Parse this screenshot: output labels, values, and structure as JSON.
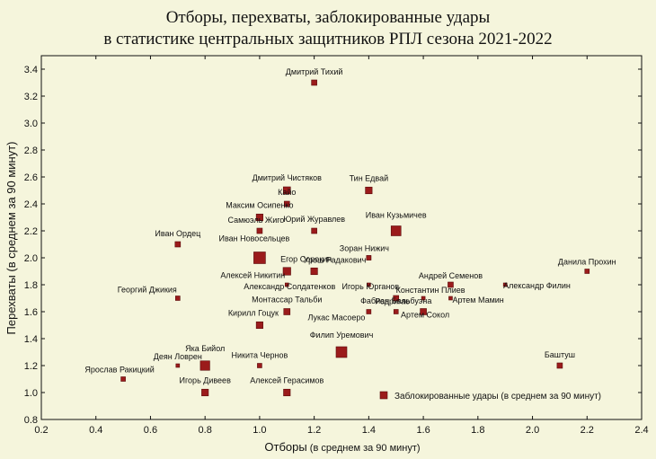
{
  "chart_data": {
    "type": "scatter",
    "title": [
      "Отборы, перехваты, заблокированные удары",
      "в статистике центральных защитников РПЛ сезона 2021-2022"
    ],
    "xlabel": "Отборы",
    "xlabel_suffix": " (в среднем за 90 минут)",
    "ylabel": "Перехваты (в среднем за 90 минут)",
    "xlim": [
      0.2,
      2.4
    ],
    "ylim": [
      0.8,
      3.5
    ],
    "x_ticks": [
      "0.2",
      "0.4",
      "0.6",
      "0.8",
      "1.0",
      "1.2",
      "1.4",
      "1.6",
      "1.8",
      "2.0",
      "2.2",
      "2.4"
    ],
    "y_ticks": [
      "0.8",
      "1.0",
      "1.2",
      "1.4",
      "1.6",
      "1.8",
      "2.0",
      "2.2",
      "2.4",
      "2.6",
      "2.8",
      "3.0",
      "3.2",
      "3.4"
    ],
    "marker_color": "#9b1b1b",
    "marker_edge": "#5a0c0c",
    "size_legend": "Заблокированные удары (в среднем за 90 минут)",
    "points": [
      {
        "name": "Дмитрий Тихий",
        "x": 1.2,
        "y": 3.3,
        "s": 0.3
      },
      {
        "name": "Дмитрий Чистяков",
        "x": 1.1,
        "y": 2.5,
        "s": 0.5
      },
      {
        "name": "Тин Едвай",
        "x": 1.4,
        "y": 2.5,
        "s": 0.45
      },
      {
        "name": "Кайо",
        "x": 1.1,
        "y": 2.4,
        "s": 0.3
      },
      {
        "name": "Максим Осипенко",
        "x": 1.0,
        "y": 2.3,
        "s": 0.45
      },
      {
        "name": "Самюэль Жиго",
        "x": 1.0,
        "y": 2.2,
        "s": 0.3
      },
      {
        "name": "Юрий Журавлев",
        "x": 1.2,
        "y": 2.2,
        "s": 0.3
      },
      {
        "name": "Иван Кузьмичев",
        "x": 1.5,
        "y": 2.2,
        "s": 0.8
      },
      {
        "name": "Иван Ордец",
        "x": 0.7,
        "y": 2.1,
        "s": 0.3
      },
      {
        "name": "Иван Новосельцев",
        "x": 1.0,
        "y": 2.0,
        "s": 1.0
      },
      {
        "name": "Зоран Нижич",
        "x": 1.4,
        "y": 2.0,
        "s": 0.2
      },
      {
        "name": "Урош Радакович",
        "x": 1.4,
        "y": 2.0,
        "s": 0.2
      },
      {
        "name": "Егор Сорокин",
        "x": 1.2,
        "y": 1.9,
        "s": 0.45
      },
      {
        "name": "Алексей Никитин",
        "x": 1.1,
        "y": 1.9,
        "s": 0.55
      },
      {
        "name": "Данила Прохин",
        "x": 2.2,
        "y": 1.9,
        "s": 0.2
      },
      {
        "name": "Андрей Семенов",
        "x": 1.7,
        "y": 1.8,
        "s": 0.3
      },
      {
        "name": "Александр Филин",
        "x": 1.9,
        "y": 1.8,
        "s": 0.1
      },
      {
        "name": "Александр Солдатенков",
        "x": 1.1,
        "y": 1.8,
        "s": 0.1
      },
      {
        "name": "Игорь Юрганов",
        "x": 1.4,
        "y": 1.8,
        "s": 0.1
      },
      {
        "name": "Константин Плиев",
        "x": 1.6,
        "y": 1.7,
        "s": 0.1
      },
      {
        "name": "Фабиан Бальбуэна",
        "x": 1.5,
        "y": 1.7,
        "s": 0.3
      },
      {
        "name": "Артем Мамин",
        "x": 1.7,
        "y": 1.7,
        "s": 0.1
      },
      {
        "name": "Георгий Джикия",
        "x": 0.7,
        "y": 1.7,
        "s": 0.2
      },
      {
        "name": "Монтассар Тальби",
        "x": 1.1,
        "y": 1.6,
        "s": 0.4
      },
      {
        "name": "Родригао",
        "x": 1.5,
        "y": 1.6,
        "s": 0.2
      },
      {
        "name": "Артем Сокол",
        "x": 1.6,
        "y": 1.6,
        "s": 0.4
      },
      {
        "name": "Лукас Масоеро",
        "x": 1.4,
        "y": 1.6,
        "s": 0.2
      },
      {
        "name": "Кирилл Гоцук",
        "x": 1.0,
        "y": 1.5,
        "s": 0.45
      },
      {
        "name": "Филип Уремович",
        "x": 1.3,
        "y": 1.3,
        "s": 0.9
      },
      {
        "name": "Яка Бийол",
        "x": 0.8,
        "y": 1.2,
        "s": 0.75
      },
      {
        "name": "Деян Ловрен",
        "x": 0.7,
        "y": 1.2,
        "s": 0.1
      },
      {
        "name": "Никита Чернов",
        "x": 1.0,
        "y": 1.2,
        "s": 0.2
      },
      {
        "name": "Баштуш",
        "x": 2.1,
        "y": 1.2,
        "s": 0.3
      },
      {
        "name": "Ярослав Ракицкий",
        "x": 0.5,
        "y": 1.1,
        "s": 0.2
      },
      {
        "name": "Игорь Дивеев",
        "x": 0.8,
        "y": 1.0,
        "s": 0.45
      },
      {
        "name": "Алексей Герасимов",
        "x": 1.1,
        "y": 1.0,
        "s": 0.45
      }
    ]
  }
}
